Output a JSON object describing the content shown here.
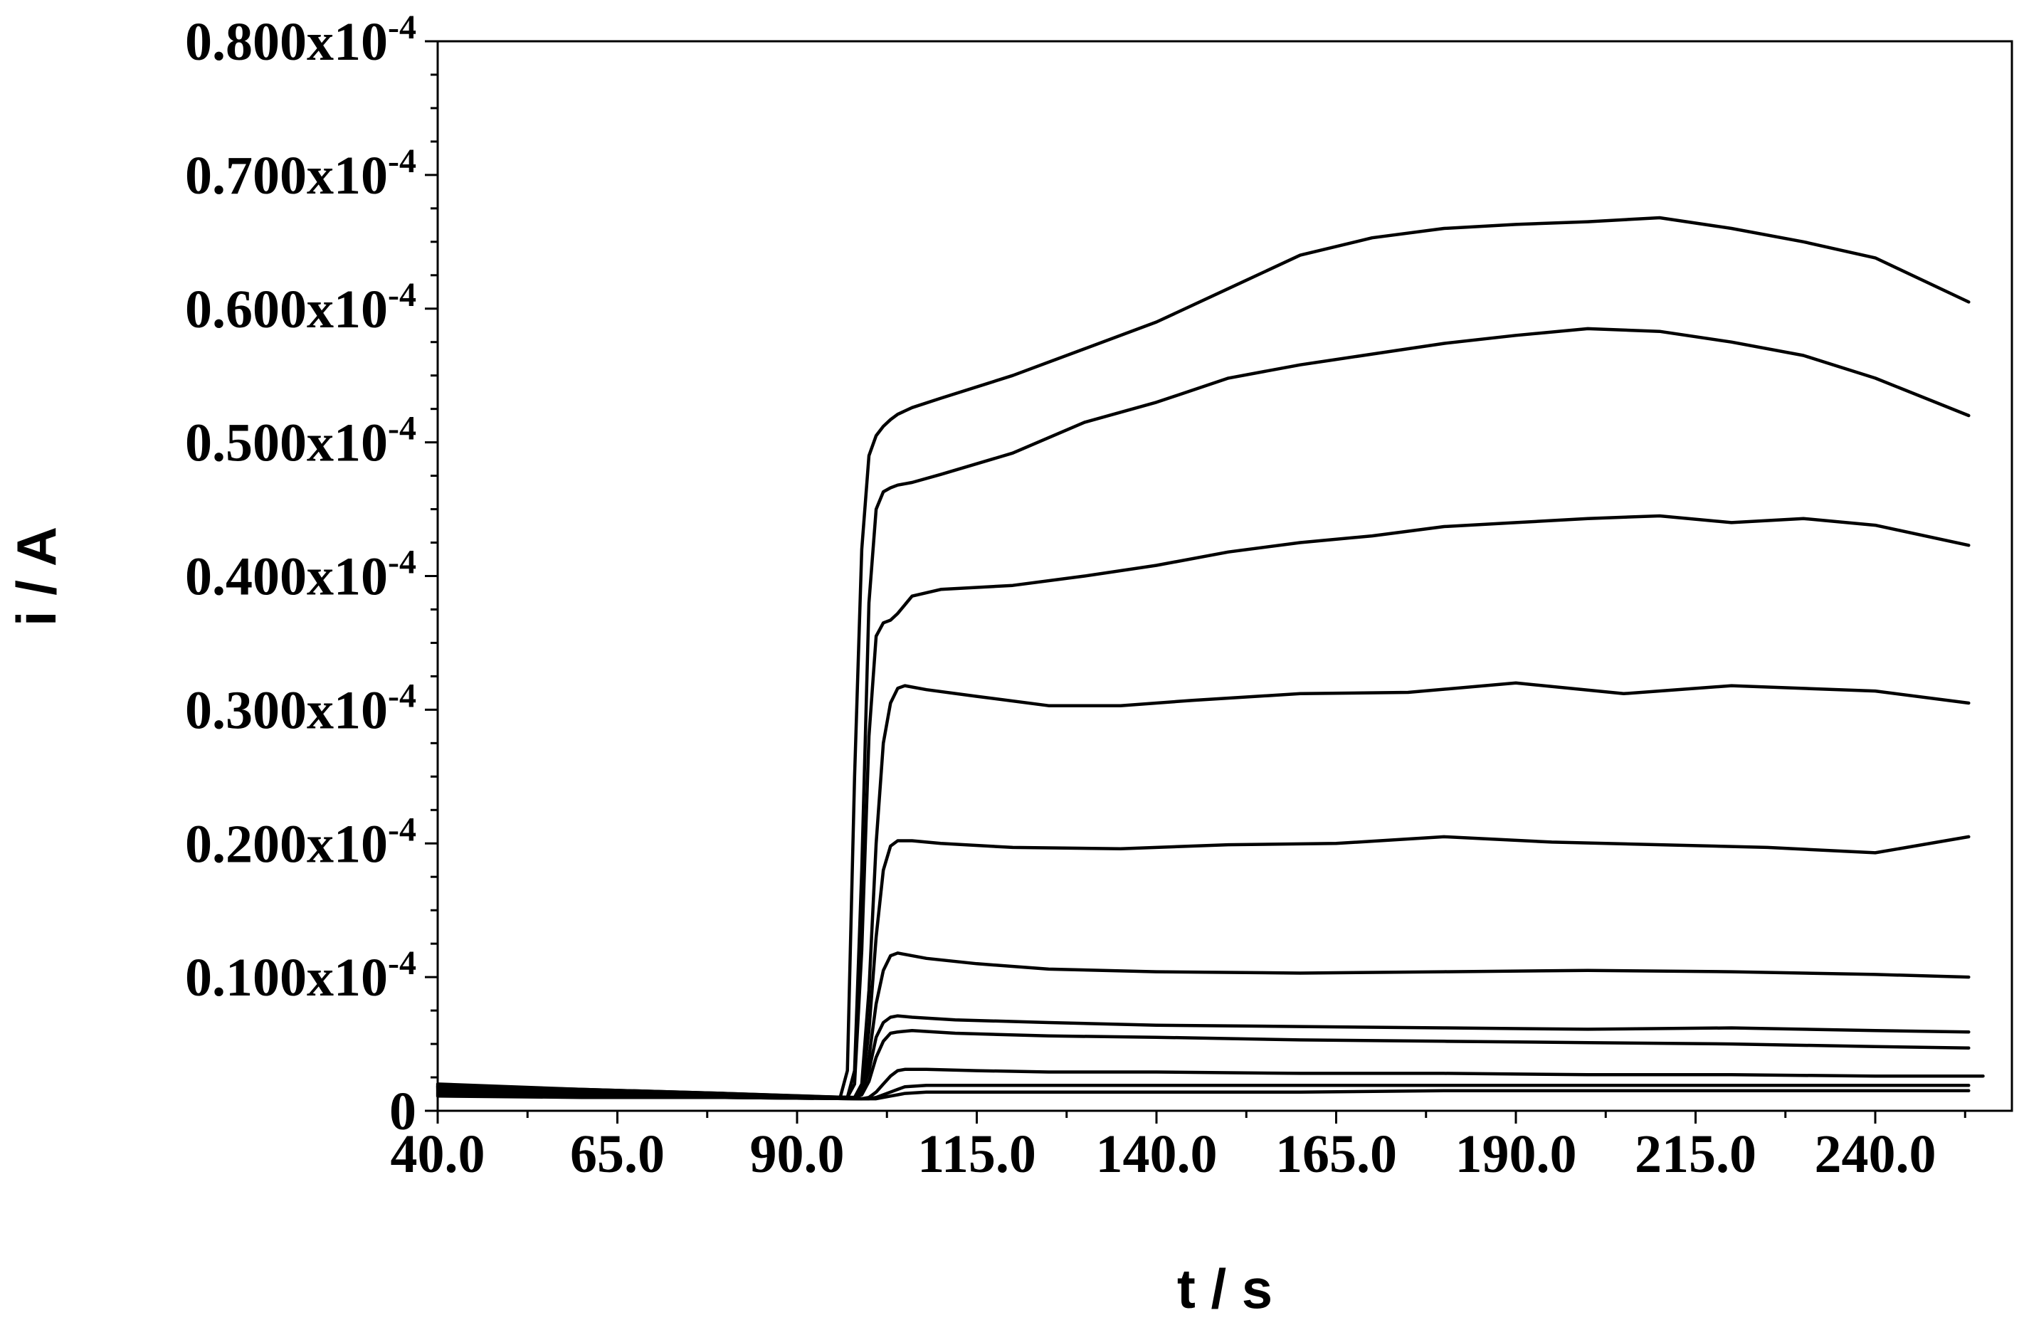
{
  "chart_data": {
    "type": "line",
    "xlabel": "t / s",
    "ylabel": "i / A",
    "xlim": [
      40,
      255
    ],
    "ylim": [
      0,
      0.8
    ],
    "y_multiplier_text": "x10",
    "y_exponent_text": "-4",
    "x_tick_labels": [
      "40.0",
      "65.0",
      "90.0",
      "115.0",
      "140.0",
      "165.0",
      "190.0",
      "215.0",
      "240.0"
    ],
    "x_ticks": [
      40,
      65,
      90,
      115,
      140,
      165,
      190,
      215,
      240
    ],
    "y_tick_labels": [
      "0",
      "0.100",
      "0.200",
      "0.300",
      "0.400",
      "0.500",
      "0.600",
      "0.700",
      "0.800"
    ],
    "y_ticks": [
      0,
      0.1,
      0.2,
      0.3,
      0.4,
      0.5,
      0.6,
      0.7,
      0.8
    ],
    "grid": false,
    "series": [
      {
        "x": [
          40,
          60,
          80,
          99,
          100,
          101,
          102,
          103,
          104,
          105,
          108,
          115,
          125,
          140,
          160,
          180,
          200,
          220,
          240,
          253
        ],
        "values": [
          0.013,
          0.011,
          0.01,
          0.009,
          0.009,
          0.009,
          0.01,
          0.011,
          0.012,
          0.013,
          0.014,
          0.014,
          0.014,
          0.014,
          0.014,
          0.015,
          0.015,
          0.015,
          0.015,
          0.015
        ]
      },
      {
        "x": [
          40,
          60,
          80,
          99,
          100,
          101,
          102,
          103,
          104,
          105,
          108,
          115,
          125,
          140,
          160,
          180,
          200,
          220,
          240,
          253
        ],
        "values": [
          0.011,
          0.01,
          0.01,
          0.009,
          0.009,
          0.01,
          0.012,
          0.014,
          0.016,
          0.018,
          0.019,
          0.019,
          0.019,
          0.019,
          0.019,
          0.019,
          0.019,
          0.019,
          0.019,
          0.019
        ]
      },
      {
        "x": [
          40,
          60,
          80,
          99,
          100,
          101,
          102,
          103,
          104,
          105,
          108,
          115,
          125,
          140,
          160,
          180,
          200,
          220,
          240,
          255
        ],
        "values": [
          0.012,
          0.011,
          0.01,
          0.009,
          0.01,
          0.014,
          0.02,
          0.026,
          0.03,
          0.031,
          0.031,
          0.03,
          0.029,
          0.029,
          0.028,
          0.028,
          0.027,
          0.027,
          0.026,
          0.026
        ]
      },
      {
        "x": [
          40,
          60,
          80,
          98,
          99,
          100,
          101,
          102,
          103,
          104,
          106,
          112,
          125,
          140,
          160,
          180,
          200,
          220,
          240,
          253
        ],
        "values": [
          0.014,
          0.012,
          0.011,
          0.01,
          0.012,
          0.022,
          0.04,
          0.052,
          0.058,
          0.059,
          0.06,
          0.058,
          0.056,
          0.055,
          0.053,
          0.052,
          0.051,
          0.05,
          0.048,
          0.047
        ]
      },
      {
        "x": [
          40,
          60,
          80,
          98,
          99,
          100,
          101,
          102,
          103,
          104,
          106,
          112,
          125,
          140,
          160,
          180,
          200,
          220,
          240,
          253
        ],
        "values": [
          0.015,
          0.013,
          0.011,
          0.01,
          0.013,
          0.03,
          0.055,
          0.066,
          0.07,
          0.071,
          0.07,
          0.068,
          0.066,
          0.064,
          0.063,
          0.062,
          0.061,
          0.062,
          0.06,
          0.059
        ]
      },
      {
        "x": [
          40,
          60,
          80,
          98,
          99,
          100,
          101,
          102,
          103,
          104,
          105,
          108,
          115,
          125,
          140,
          160,
          180,
          200,
          220,
          240,
          253
        ],
        "values": [
          0.016,
          0.013,
          0.011,
          0.01,
          0.013,
          0.04,
          0.08,
          0.105,
          0.116,
          0.118,
          0.117,
          0.114,
          0.11,
          0.106,
          0.104,
          0.103,
          0.104,
          0.105,
          0.104,
          0.102,
          0.1
        ]
      },
      {
        "x": [
          40,
          60,
          80,
          98,
          99,
          100,
          101,
          102,
          103,
          104,
          106,
          110,
          120,
          135,
          150,
          165,
          180,
          195,
          210,
          225,
          240,
          253
        ],
        "values": [
          0.017,
          0.014,
          0.011,
          0.01,
          0.015,
          0.06,
          0.13,
          0.18,
          0.198,
          0.202,
          0.202,
          0.2,
          0.197,
          0.196,
          0.199,
          0.2,
          0.205,
          0.201,
          0.199,
          0.197,
          0.193,
          0.205
        ]
      },
      {
        "x": [
          40,
          60,
          80,
          98,
          99,
          100,
          101,
          102,
          103,
          104,
          105,
          108,
          115,
          125,
          135,
          145,
          160,
          175,
          190,
          205,
          220,
          240,
          253
        ],
        "values": [
          0.018,
          0.014,
          0.012,
          0.01,
          0.02,
          0.09,
          0.2,
          0.275,
          0.305,
          0.316,
          0.318,
          0.315,
          0.31,
          0.303,
          0.303,
          0.307,
          0.312,
          0.313,
          0.32,
          0.312,
          0.318,
          0.314,
          0.305
        ]
      },
      {
        "x": [
          40,
          60,
          80,
          97,
          98,
          99,
          100,
          101,
          102,
          103,
          104,
          106,
          110,
          120,
          130,
          140,
          150,
          160,
          170,
          180,
          190,
          200,
          210,
          220,
          230,
          240,
          253
        ],
        "values": [
          0.018,
          0.015,
          0.012,
          0.01,
          0.02,
          0.12,
          0.28,
          0.355,
          0.365,
          0.367,
          0.372,
          0.385,
          0.39,
          0.393,
          0.4,
          0.408,
          0.418,
          0.425,
          0.43,
          0.437,
          0.44,
          0.443,
          0.445,
          0.44,
          0.443,
          0.438,
          0.423
        ]
      },
      {
        "x": [
          40,
          60,
          80,
          97,
          98,
          99,
          100,
          101,
          102,
          103,
          104,
          106,
          110,
          120,
          130,
          140,
          150,
          160,
          170,
          180,
          190,
          200,
          210,
          220,
          230,
          240,
          253
        ],
        "values": [
          0.019,
          0.016,
          0.013,
          0.01,
          0.03,
          0.18,
          0.38,
          0.45,
          0.463,
          0.466,
          0.468,
          0.47,
          0.476,
          0.492,
          0.515,
          0.53,
          0.548,
          0.558,
          0.566,
          0.574,
          0.58,
          0.585,
          0.583,
          0.575,
          0.565,
          0.548,
          0.52
        ]
      },
      {
        "x": [
          40,
          60,
          80,
          96,
          97,
          98,
          99,
          100,
          101,
          102,
          103,
          104,
          106,
          110,
          120,
          130,
          140,
          150,
          160,
          170,
          180,
          190,
          200,
          210,
          220,
          230,
          240,
          253
        ],
        "values": [
          0.02,
          0.016,
          0.013,
          0.01,
          0.03,
          0.25,
          0.42,
          0.49,
          0.505,
          0.512,
          0.517,
          0.521,
          0.526,
          0.533,
          0.55,
          0.57,
          0.59,
          0.615,
          0.64,
          0.653,
          0.66,
          0.663,
          0.665,
          0.668,
          0.66,
          0.65,
          0.638,
          0.605
        ]
      }
    ]
  }
}
